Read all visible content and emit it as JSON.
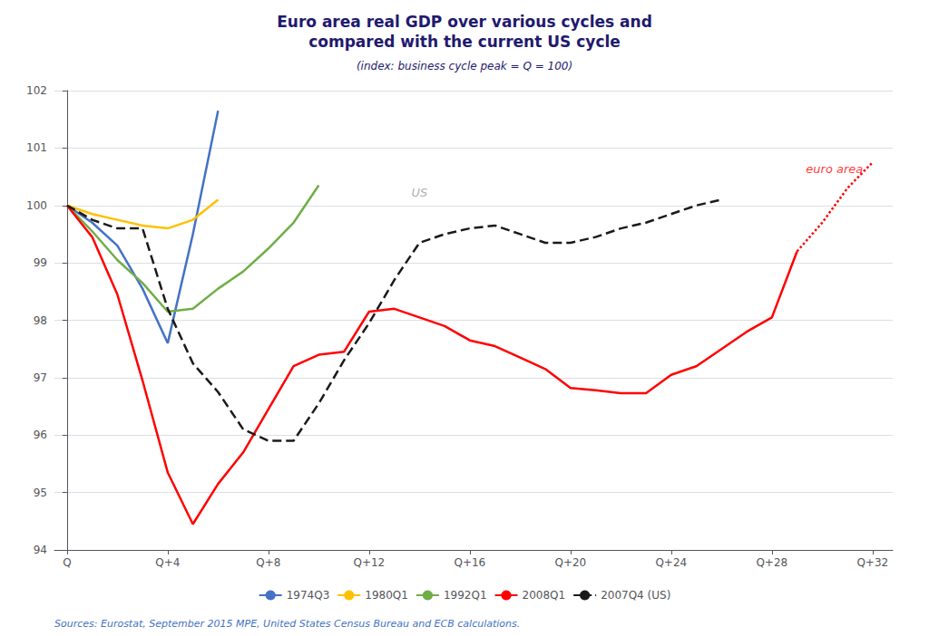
{
  "chart_data": {
    "type": "line",
    "title": "Euro area real GDP over various cycles and\ncompared with the current US cycle",
    "subtitle": "(index: business cycle peak = Q = 100)",
    "source": "Sources: Eurostat, September 2015 MPE, United States Census Bureau and ECB calculations.",
    "xlim": [
      -0.5,
      32.8
    ],
    "xticks": [
      {
        "value": 0,
        "label": "Q"
      },
      {
        "value": 4,
        "label": "Q+4"
      },
      {
        "value": 8,
        "label": "Q+8"
      },
      {
        "value": 12,
        "label": "Q+12"
      },
      {
        "value": 16,
        "label": "Q+16"
      },
      {
        "value": 20,
        "label": "Q+20"
      },
      {
        "value": 24,
        "label": "Q+24"
      },
      {
        "value": 28,
        "label": "Q+28"
      },
      {
        "value": 32,
        "label": "Q+32"
      }
    ],
    "ylim": [
      94,
      102
    ],
    "yticks": [
      94,
      95,
      96,
      97,
      98,
      99,
      100,
      101,
      102
    ],
    "grid": true,
    "legend": "bottom",
    "series": [
      {
        "name": "1974Q3",
        "color": "#4472C4",
        "line_style": "solid",
        "x": [
          0,
          1,
          2,
          3,
          4,
          5,
          6
        ],
        "values": [
          100.0,
          99.7,
          99.3,
          98.55,
          97.6,
          99.5,
          101.65
        ]
      },
      {
        "name": "1980Q1",
        "color": "#FFC000",
        "line_style": "solid",
        "x": [
          0,
          1,
          2,
          3,
          4,
          5,
          6
        ],
        "values": [
          100.0,
          99.85,
          99.75,
          99.65,
          99.6,
          99.75,
          100.1
        ]
      },
      {
        "name": "1992Q1",
        "color": "#70AD47",
        "line_style": "solid",
        "x": [
          0,
          1,
          2,
          3,
          4,
          5,
          6,
          7,
          8,
          9,
          10
        ],
        "values": [
          100.0,
          99.55,
          99.05,
          98.65,
          98.15,
          98.2,
          98.55,
          98.85,
          99.25,
          99.7,
          100.35
        ]
      },
      {
        "name": "2008Q1",
        "color": "#FF0000",
        "line_style": "solid",
        "x": [
          0,
          1,
          2,
          3,
          4,
          5,
          6,
          7,
          8,
          9,
          10,
          11,
          12,
          13,
          14,
          15,
          16,
          17,
          18,
          19,
          20,
          21,
          22,
          23,
          24,
          25,
          26,
          27,
          28,
          29
        ],
        "values": [
          100.0,
          99.45,
          98.45,
          96.95,
          95.35,
          94.45,
          95.15,
          95.7,
          96.45,
          97.2,
          97.4,
          97.45,
          98.15,
          98.2,
          98.05,
          97.9,
          97.65,
          97.55,
          97.35,
          97.15,
          96.82,
          96.78,
          96.73,
          96.73,
          97.05,
          97.2,
          97.5,
          97.8,
          98.05,
          99.2
        ]
      },
      {
        "name": "2008Q1",
        "color": "#FF0000",
        "line_style": "dotted",
        "x": [
          29,
          30,
          31,
          32
        ],
        "values": [
          99.2,
          99.7,
          100.3,
          100.75
        ]
      },
      {
        "name": "2007Q4 (US)",
        "color": "#1a1a1a",
        "line_style": "dashed",
        "x": [
          0,
          1,
          2,
          3,
          4,
          5,
          6,
          7,
          8,
          9,
          10,
          11,
          12,
          13,
          14,
          15,
          16,
          17,
          18,
          19,
          20,
          21,
          22,
          23,
          24,
          25,
          26
        ],
        "values": [
          100.0,
          99.75,
          99.6,
          99.6,
          98.2,
          97.25,
          96.75,
          96.1,
          95.9,
          95.9,
          96.55,
          97.3,
          97.95,
          98.7,
          99.35,
          99.5,
          99.6,
          99.65,
          99.5,
          99.35,
          99.35,
          99.45,
          99.6,
          99.7,
          99.85,
          100.0,
          100.1
        ]
      }
    ],
    "annotations": [
      {
        "text": "US",
        "x": 13.5,
        "y": 100.08,
        "color": "#999999"
      },
      {
        "text": "euro area",
        "x": 31.8,
        "y": 100.5,
        "color": "#FF0000"
      }
    ]
  }
}
